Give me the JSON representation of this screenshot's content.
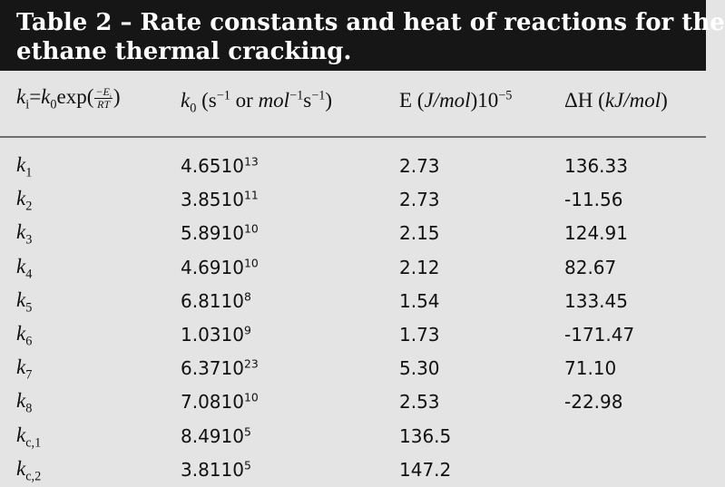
{
  "title": {
    "line1": "Table 2 – Rate constants and heat of reactions for the",
    "line2": "ethane thermal cracking."
  },
  "header": {
    "col1": {
      "lhs": "k",
      "lhs_sub": "i",
      "eq": "=",
      "rhs": "k",
      "rhs_sub": "0",
      "fn": "exp",
      "frac_num": "−E",
      "frac_num_sub": "i",
      "frac_den": "RT"
    },
    "col2": {
      "label": "k",
      "label_sub": "0",
      "unit_open": " (s",
      "unit_exp1": "−1",
      "unit_or": " or ",
      "unit_mol": "mol",
      "unit_exp2": "−1",
      "unit_s": "s",
      "unit_exp3": "−1",
      "unit_close": ")"
    },
    "col3": {
      "label": "E (",
      "unit": "J/mol",
      "after": ")10",
      "exp": "−5"
    },
    "col4": {
      "label": "ΔH (",
      "unit": "kJ/mol",
      "after": ")"
    }
  },
  "rows": [
    {
      "k": "k",
      "sub": "1",
      "k0_base": "4.6510",
      "k0_exp": "13",
      "E": "2.73",
      "dH": "136.33"
    },
    {
      "k": "k",
      "sub": "2",
      "k0_base": "3.8510",
      "k0_exp": "11",
      "E": "2.73",
      "dH": "-11.56"
    },
    {
      "k": "k",
      "sub": "3",
      "k0_base": "5.8910",
      "k0_exp": "10",
      "E": "2.15",
      "dH": "124.91"
    },
    {
      "k": "k",
      "sub": "4",
      "k0_base": "4.6910",
      "k0_exp": "10",
      "E": "2.12",
      "dH": "82.67"
    },
    {
      "k": "k",
      "sub": "5",
      "k0_base": "6.8110",
      "k0_exp": "8",
      "E": "1.54",
      "dH": "133.45"
    },
    {
      "k": "k",
      "sub": "6",
      "k0_base": "1.0310",
      "k0_exp": "9",
      "E": "1.73",
      "dH": "-171.47"
    },
    {
      "k": "k",
      "sub": "7",
      "k0_base": "6.3710",
      "k0_exp": "23",
      "E": "5.30",
      "dH": "71.10"
    },
    {
      "k": "k",
      "sub": "8",
      "k0_base": "7.0810",
      "k0_exp": "10",
      "E": "2.53",
      "dH": "-22.98"
    },
    {
      "k": "k",
      "sub": "c,1",
      "k0_base": "8.4910",
      "k0_exp": "5",
      "E": "136.5",
      "dH": ""
    },
    {
      "k": "k",
      "sub": "c,2",
      "k0_base": "3.8110",
      "k0_exp": "5",
      "E": "147.2",
      "dH": ""
    }
  ]
}
